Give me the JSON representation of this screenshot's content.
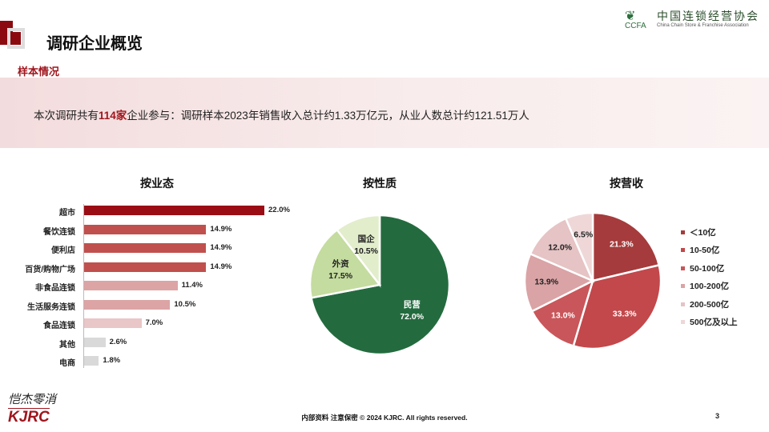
{
  "header": {
    "title": "调研企业概览",
    "logo_cn": "中国连锁经营协会",
    "logo_abbr": "CCFA",
    "logo_en": "China Chain Store & Franchise Association"
  },
  "section": {
    "label": "样本情况"
  },
  "summary": {
    "prefix": "本次调研共有",
    "highlight": "114家",
    "suffix": "企业参与：调研样本2023年销售收入总计约1.33万亿元，从业人数总计约121.51万人"
  },
  "footer": {
    "text": "内部资料 注意保密 © 2024 KJRC. All rights reserved.",
    "page": "3",
    "brand": "KJRC",
    "brand_cn": "恺杰零消"
  },
  "chart_data": [
    {
      "type": "bar",
      "orientation": "horizontal",
      "title": "按业态",
      "categories": [
        "超市",
        "餐饮连锁",
        "便利店",
        "百货/购物广场",
        "非食品连锁",
        "生活服务连锁",
        "食品连锁",
        "其他",
        "电商"
      ],
      "values": [
        22.0,
        14.9,
        14.9,
        14.9,
        11.4,
        10.5,
        7.0,
        2.6,
        1.8
      ],
      "labels": [
        "22.0%",
        "14.9%",
        "14.9%",
        "14.9%",
        "11.4%",
        "10.5%",
        "7.0%",
        "2.6%",
        "1.8%"
      ],
      "colors": [
        "#9b0d14",
        "#c0504d",
        "#c0504d",
        "#c0504d",
        "#dca4a5",
        "#dca4a5",
        "#e9c6c7",
        "#d9d9d9",
        "#d9d9d9"
      ]
    },
    {
      "type": "pie",
      "title": "按性质",
      "categories": [
        "民营",
        "外资",
        "国企"
      ],
      "values": [
        72.0,
        17.5,
        10.5
      ],
      "labels": [
        "72.0%",
        "17.5%",
        "10.5%"
      ],
      "colors": [
        "#236b3e",
        "#c4dc9f",
        "#e2edcb"
      ],
      "label_colors": [
        "#ffffff",
        "#222222",
        "#222222"
      ]
    },
    {
      "type": "pie",
      "title": "按营收",
      "legend": "right",
      "categories": [
        "＜10亿",
        "10-50亿",
        "50-100亿",
        "100-200亿",
        "200-500亿",
        "500亿及以上"
      ],
      "values": [
        21.3,
        33.3,
        13.0,
        13.9,
        12.0,
        6.5
      ],
      "labels": [
        "21.3%",
        "33.3%",
        "13.0%",
        "13.9%",
        "12.0%",
        "6.5%"
      ],
      "colors": [
        "#a53b3c",
        "#c2484b",
        "#c9565a",
        "#daa3a5",
        "#e6c3c4",
        "#efd7d8"
      ],
      "label_colors": [
        "#ffffff",
        "#ffffff",
        "#ffffff",
        "#222222",
        "#222222",
        "#222222"
      ]
    }
  ]
}
